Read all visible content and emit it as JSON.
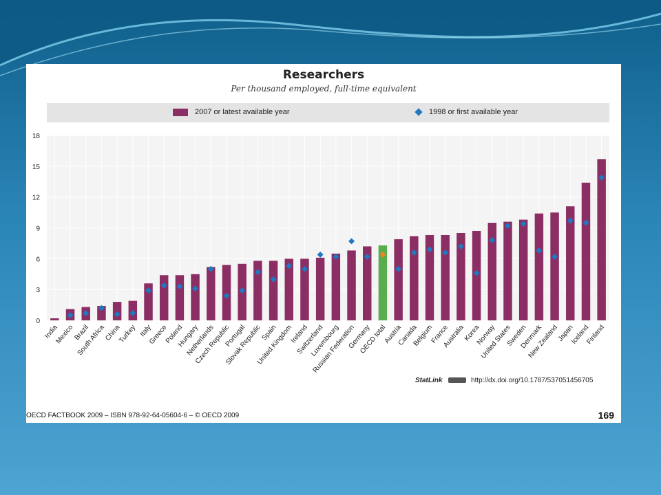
{
  "chart_data": {
    "type": "bar",
    "title": "Researchers",
    "subtitle": "Per thousand employed, full-time equivalent",
    "legend": [
      "2007 or latest available year",
      "1998 or first available year"
    ],
    "categories": [
      "India",
      "Mexico",
      "Brazil",
      "South Africa",
      "China",
      "Turkey",
      "Italy",
      "Greece",
      "Poland",
      "Hungary",
      "Netherlands",
      "Czech Republic",
      "Portugal",
      "Slovak Republic",
      "Spain",
      "United Kingdom",
      "Ireland",
      "Switzerland",
      "Luxembourg",
      "Russian Federation",
      "Germany",
      "OECD total",
      "Austria",
      "Canada",
      "Belgium",
      "France",
      "Australia",
      "Korea",
      "Norway",
      "United States",
      "Sweden",
      "Denmark",
      "New Zealand",
      "Japan",
      "Iceland",
      "Finland"
    ],
    "series": [
      {
        "name": "2007 or latest available year",
        "values": [
          0.2,
          1.1,
          1.3,
          1.4,
          1.8,
          1.9,
          3.6,
          4.4,
          4.4,
          4.5,
          5.2,
          5.4,
          5.5,
          5.8,
          5.8,
          6.0,
          6.0,
          6.1,
          6.5,
          6.8,
          7.2,
          7.3,
          7.9,
          8.2,
          8.3,
          8.3,
          8.5,
          8.7,
          9.5,
          9.6,
          9.8,
          10.4,
          10.5,
          11.1,
          13.4,
          15.7
        ]
      },
      {
        "name": "1998 or first available year",
        "values": [
          null,
          0.5,
          0.7,
          1.2,
          0.6,
          0.7,
          2.9,
          3.4,
          3.3,
          3.1,
          5.0,
          2.4,
          2.9,
          4.7,
          4.0,
          5.3,
          5.0,
          6.4,
          6.2,
          7.7,
          6.2,
          6.4,
          5.0,
          6.6,
          6.9,
          6.6,
          7.2,
          4.6,
          7.8,
          9.2,
          9.4,
          6.8,
          6.2,
          9.7,
          9.5,
          13.9
        ]
      }
    ],
    "highlight_category": "OECD total",
    "ylim": [
      0,
      18
    ],
    "yticks": [
      0,
      3,
      6,
      9,
      12,
      15,
      18
    ],
    "grid": true,
    "legend_placement": "top",
    "colors": {
      "bar": "#8b2e63",
      "bar_highlight": "#5aad4e",
      "marker": "#1f78c0",
      "marker_highlight": "#e8862a",
      "grid": "#e6e6e6"
    }
  },
  "statlink": {
    "brand": "StatLink",
    "url": "http://dx.doi.org/10.1787/537051456705"
  },
  "footer": {
    "text": "OECD FACTBOOK 2009 – ISBN 978-92-64-05604-6 – © OECD 2009",
    "page": "169"
  }
}
